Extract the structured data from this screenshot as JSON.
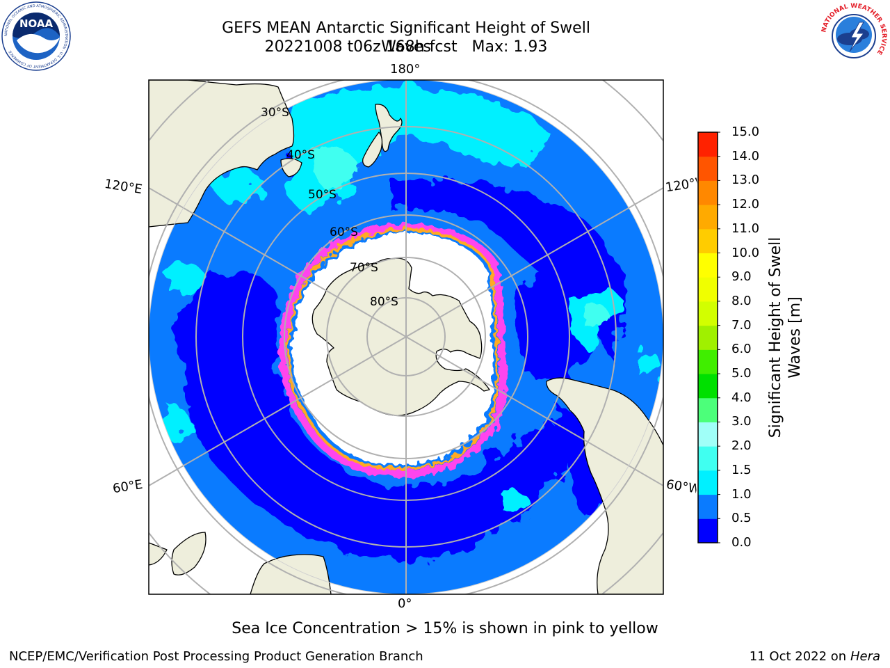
{
  "title": {
    "line1": "GEFS MEAN Antarctic Significant Height of Swell Waves",
    "line2": "20221008 t06z 168h fcst   Max: 1.93"
  },
  "logos": {
    "left": {
      "name": "noaa-logo",
      "text": "NOAA",
      "ring_text": "NATIONAL OCEANIC AND ATMOSPHERIC ADMINISTRATION · U.S. DEPARTMENT OF COMMERCE"
    },
    "right": {
      "name": "nws-logo",
      "ring_text": "NATIONAL WEATHER SERVICE"
    }
  },
  "map": {
    "projection": "south-polar-stereographic",
    "longitude_labels": {
      "top": "180°",
      "bottom": "0°",
      "upper_left": "120°E",
      "upper_right": "120°W",
      "lower_left": "60°E",
      "lower_right": "60°W"
    },
    "latitude_labels": [
      "30°S",
      "40°S",
      "50°S",
      "60°S",
      "70°S",
      "80°S"
    ],
    "colors": {
      "land": "#eeeedc",
      "ice_free_shelf": "#ffffff",
      "grid": "#b0b0b0",
      "ice_edge": [
        "#ff44ee",
        "#ffaa22",
        "#ffee33"
      ]
    }
  },
  "colorbar": {
    "label": "Significant Height of Swell Waves [m]",
    "ticks": [
      "0.0",
      "0.5",
      "1.0",
      "1.5",
      "2.0",
      "3.0",
      "4.0",
      "5.0",
      "6.0",
      "7.0",
      "8.0",
      "9.0",
      "10.0",
      "11.0",
      "12.0",
      "13.0",
      "14.0",
      "15.0"
    ],
    "colors": [
      "#0000ff",
      "#0a7bff",
      "#00f0ff",
      "#40fff0",
      "#a0fff8",
      "#4cff7a",
      "#00e000",
      "#40ee00",
      "#a0f000",
      "#d2ff00",
      "#f0ff00",
      "#ffff00",
      "#ffcc00",
      "#ffaa00",
      "#ff8800",
      "#ff5500",
      "#ff2200"
    ]
  },
  "note": "Sea Ice Concentration > 15% is shown in pink to yellow",
  "footer": {
    "left": "NCEP/EMC/Verification Post Processing Product Generation Branch",
    "right_prefix": "11 Oct 2022 on ",
    "right_host": "Hera"
  }
}
